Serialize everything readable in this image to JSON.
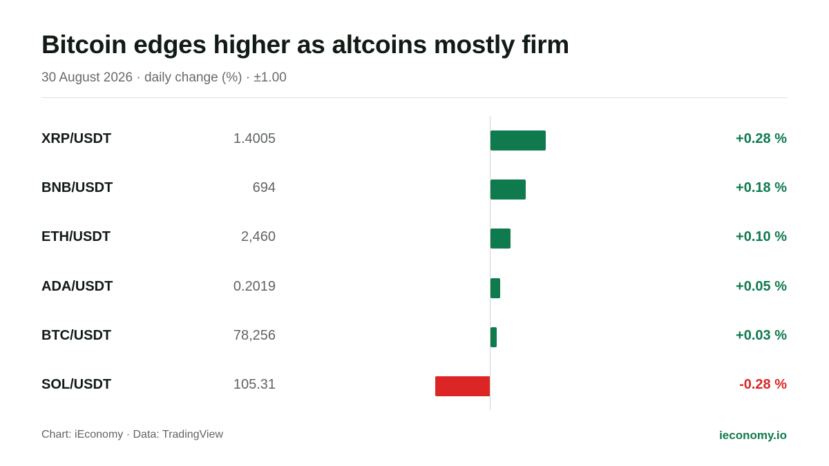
{
  "header": {
    "title": "Bitcoin edges higher as altcoins mostly firm",
    "subtitle": "30 August 2026 · daily change (%) · ±1.00"
  },
  "footer": {
    "source": "Chart: iEconomy · Data: TradingView",
    "brand": "ieconomy.io"
  },
  "colors": {
    "positive": "#0e7a4e",
    "negative": "#dc2626"
  },
  "chart_data": {
    "type": "bar",
    "orientation": "horizontal",
    "title": "Bitcoin edges higher as altcoins mostly firm",
    "subtitle": "30 August 2026 · daily change (%) · ±1.00",
    "categories": [
      "XRP/USDT",
      "BNB/USDT",
      "ETH/USDT",
      "ADA/USDT",
      "BTC/USDT",
      "SOL/USDT"
    ],
    "prices": [
      "1.4005",
      "694",
      "2,460",
      "0.2019",
      "78,256",
      "105.31"
    ],
    "values": [
      0.28,
      0.18,
      0.1,
      0.05,
      0.03,
      -0.28
    ],
    "value_labels": [
      "+0.28 %",
      "+0.18 %",
      "+0.10 %",
      "+0.05 %",
      "+0.03 %",
      "-0.28 %"
    ],
    "xlim": [
      -1.0,
      1.0
    ],
    "grid": false,
    "legend": "none"
  }
}
